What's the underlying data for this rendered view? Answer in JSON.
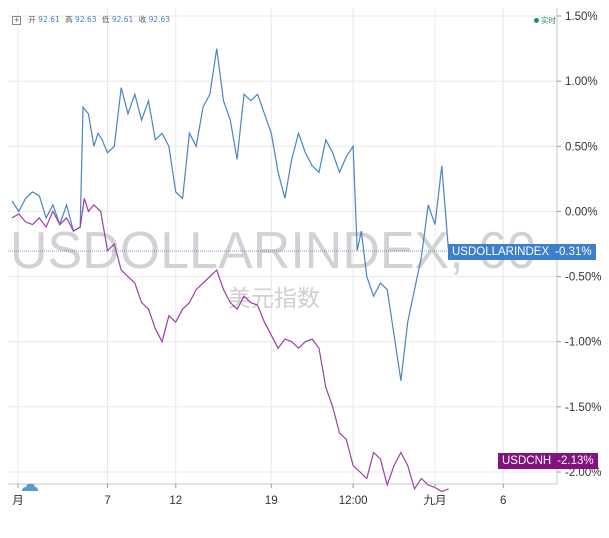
{
  "legend": {
    "open_label": "开",
    "open": "92.61",
    "high_label": "高",
    "high": "92.63",
    "low_label": "低",
    "low": "92.61",
    "close_label": "收",
    "close": "92.63",
    "live_label": "实时"
  },
  "watermark": {
    "symbol": "USDOLLARINDEX, 60",
    "name": "美元指数"
  },
  "tags": {
    "usd": {
      "name": "USDOLLARINDEX",
      "value": "-0.31%"
    },
    "cnh": {
      "name": "USDCNH",
      "value": "-2.13%"
    }
  },
  "colors": {
    "usd": "#4a84c4",
    "cnh": "#9c3fa8",
    "usd_tag": "#3d7fcd",
    "cnh_tag": "#82127e",
    "grid": "#e8e8e8"
  },
  "chart_data": {
    "type": "line",
    "y_unit": "%",
    "ylim": [
      -2.2,
      1.5
    ],
    "yticks": [
      "1.50%",
      "1.00%",
      "0.50%",
      "0.00%",
      "-0.50%",
      "-1.00%",
      "-1.50%",
      "-2.00%"
    ],
    "ytick_values": [
      1.5,
      1.0,
      0.5,
      0.0,
      -0.5,
      -1.0,
      -1.5,
      -2.0
    ],
    "xticks": [
      "月",
      "7",
      "12",
      "19",
      "12:00",
      "九月",
      "6"
    ],
    "xtick_positions": [
      0,
      7,
      12,
      19,
      25,
      31,
      36
    ],
    "xlim": [
      0,
      40
    ],
    "grid": true,
    "series": [
      {
        "name": "USDOLLARINDEX",
        "x": [
          0,
          0.5,
          1,
          1.5,
          2,
          2.5,
          3,
          3.5,
          4,
          4.5,
          5,
          5.2,
          5.6,
          6,
          6.3,
          6.6,
          7,
          7.5,
          8,
          8.5,
          9,
          9.5,
          10,
          10.5,
          11,
          11.5,
          12,
          12.5,
          13,
          13.5,
          14,
          14.5,
          15,
          15.5,
          16,
          16.5,
          17,
          17.5,
          18,
          18.5,
          19,
          19.5,
          20,
          20.5,
          21,
          21.5,
          22,
          22.5,
          23,
          23.5,
          24,
          24.5,
          25,
          25.3,
          25.6,
          26,
          26.5,
          27,
          27.5,
          28,
          28.5,
          29,
          29.5,
          30,
          30.5,
          31,
          31.5,
          32
        ],
        "y": [
          0.08,
          0.0,
          0.1,
          0.15,
          0.12,
          -0.05,
          0.05,
          -0.1,
          0.05,
          -0.15,
          -0.12,
          0.8,
          0.75,
          0.5,
          0.6,
          0.55,
          0.45,
          0.5,
          0.95,
          0.75,
          0.9,
          0.7,
          0.85,
          0.55,
          0.6,
          0.5,
          0.15,
          0.1,
          0.6,
          0.5,
          0.8,
          0.9,
          1.25,
          0.85,
          0.7,
          0.4,
          0.9,
          0.85,
          0.9,
          0.75,
          0.6,
          0.3,
          0.1,
          0.4,
          0.6,
          0.45,
          0.35,
          0.3,
          0.55,
          0.45,
          0.3,
          0.42,
          0.5,
          -0.3,
          -0.15,
          -0.5,
          -0.65,
          -0.55,
          -0.6,
          -0.95,
          -1.3,
          -0.85,
          -0.6,
          -0.35,
          0.05,
          -0.1,
          0.35,
          -0.31
        ]
      },
      {
        "name": "USDCNH",
        "x": [
          0,
          0.5,
          1,
          1.5,
          2,
          2.5,
          3,
          3.5,
          4,
          4.5,
          5,
          5.3,
          5.6,
          6,
          6.5,
          7,
          7.5,
          8,
          8.5,
          9,
          9.5,
          10,
          10.5,
          11,
          11.5,
          12,
          12.5,
          13,
          13.5,
          14,
          14.5,
          15,
          15.5,
          16,
          16.5,
          17,
          17.5,
          18,
          18.5,
          19,
          19.5,
          20,
          20.5,
          21,
          21.5,
          22,
          22.5,
          23,
          23.5,
          24,
          24.5,
          25,
          25.5,
          26,
          26.5,
          27,
          27.5,
          28,
          28.5,
          29,
          29.5,
          30,
          30.5,
          31,
          31.5,
          32
        ],
        "y": [
          -0.05,
          -0.02,
          -0.08,
          -0.1,
          -0.05,
          -0.12,
          0.0,
          -0.1,
          -0.05,
          -0.15,
          -0.12,
          0.1,
          0.0,
          0.05,
          0.0,
          -0.3,
          -0.25,
          -0.45,
          -0.5,
          -0.55,
          -0.7,
          -0.75,
          -0.9,
          -1.0,
          -0.8,
          -0.85,
          -0.75,
          -0.7,
          -0.6,
          -0.55,
          -0.5,
          -0.45,
          -0.6,
          -0.7,
          -0.75,
          -0.65,
          -0.7,
          -0.72,
          -0.85,
          -0.95,
          -1.05,
          -0.98,
          -1.0,
          -1.05,
          -1.0,
          -0.98,
          -1.05,
          -1.35,
          -1.5,
          -1.7,
          -1.75,
          -1.95,
          -2.0,
          -2.05,
          -1.85,
          -1.9,
          -2.1,
          -1.95,
          -1.85,
          -1.95,
          -2.13,
          -2.05,
          -2.1,
          -2.12,
          -2.15,
          -2.13
        ]
      }
    ]
  }
}
